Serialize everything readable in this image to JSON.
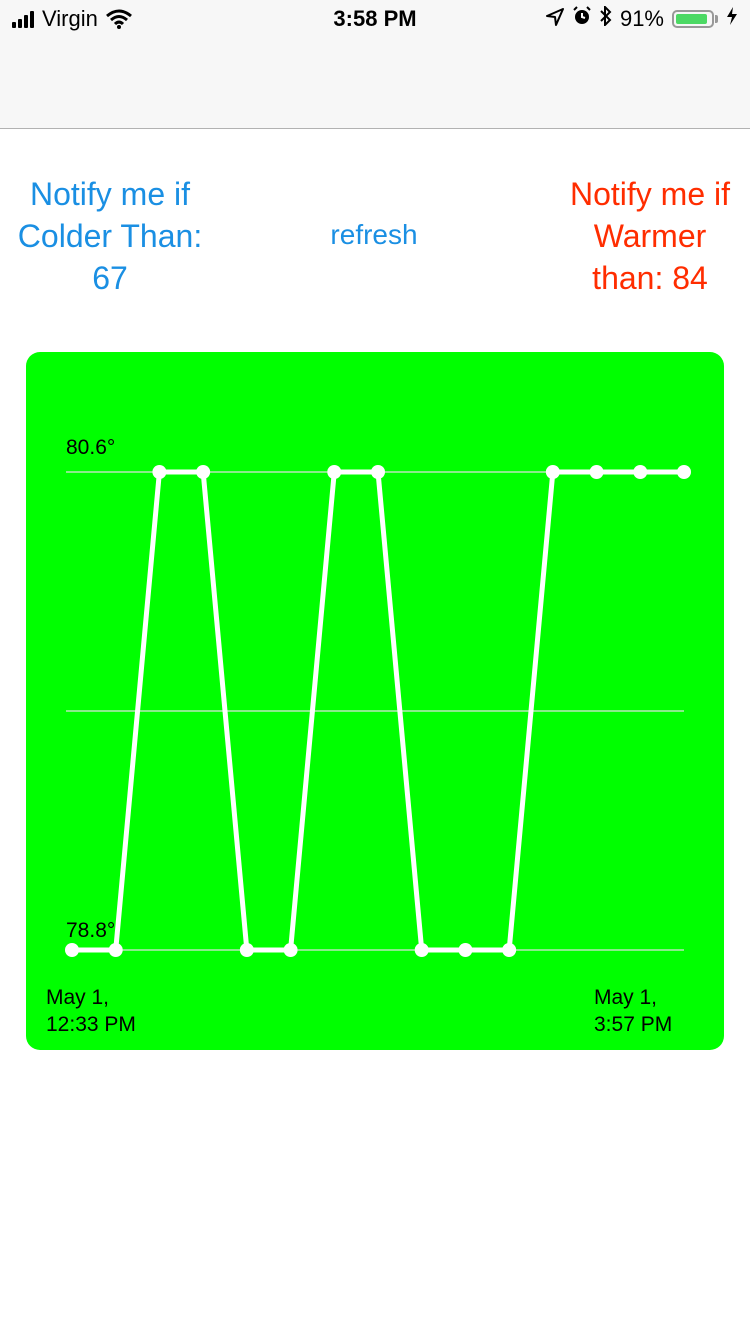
{
  "status_bar": {
    "carrier": "Virgin",
    "time": "3:58 PM",
    "battery_percent": "91%",
    "battery_level": 0.91,
    "icons": [
      "signal-bars-icon",
      "wifi-icon",
      "location-arrow-icon",
      "alarm-icon",
      "bluetooth-icon",
      "battery-icon",
      "charging-bolt-icon"
    ]
  },
  "controls": {
    "cold": {
      "lines": [
        "Notify me if",
        "Colder Than:",
        "67"
      ],
      "color": "#1a8fe3"
    },
    "refresh_label": "refresh",
    "warm": {
      "lines": [
        "Notify me if",
        "Warmer",
        "than: 84"
      ],
      "color": "#ff2d00"
    }
  },
  "colors": {
    "chart_background": "#00ff00",
    "line": "#ffffff",
    "grid": "#b8e6b8"
  },
  "chart_data": {
    "type": "line",
    "y_tick_labels": [
      "80.6°",
      "78.8°"
    ],
    "ylim": [
      78.8,
      80.6
    ],
    "x_tick_labels": [
      [
        "May 1,",
        "12:33 PM"
      ],
      [
        "May 1,",
        "3:57 PM"
      ]
    ],
    "gridlines": [
      80.6,
      79.7,
      78.8
    ],
    "series": [
      {
        "values": [
          78.8,
          78.8,
          80.6,
          80.6,
          78.8,
          78.8,
          80.6,
          80.6,
          78.8,
          78.8,
          78.8,
          80.6,
          80.6,
          80.6,
          80.6
        ]
      }
    ]
  }
}
